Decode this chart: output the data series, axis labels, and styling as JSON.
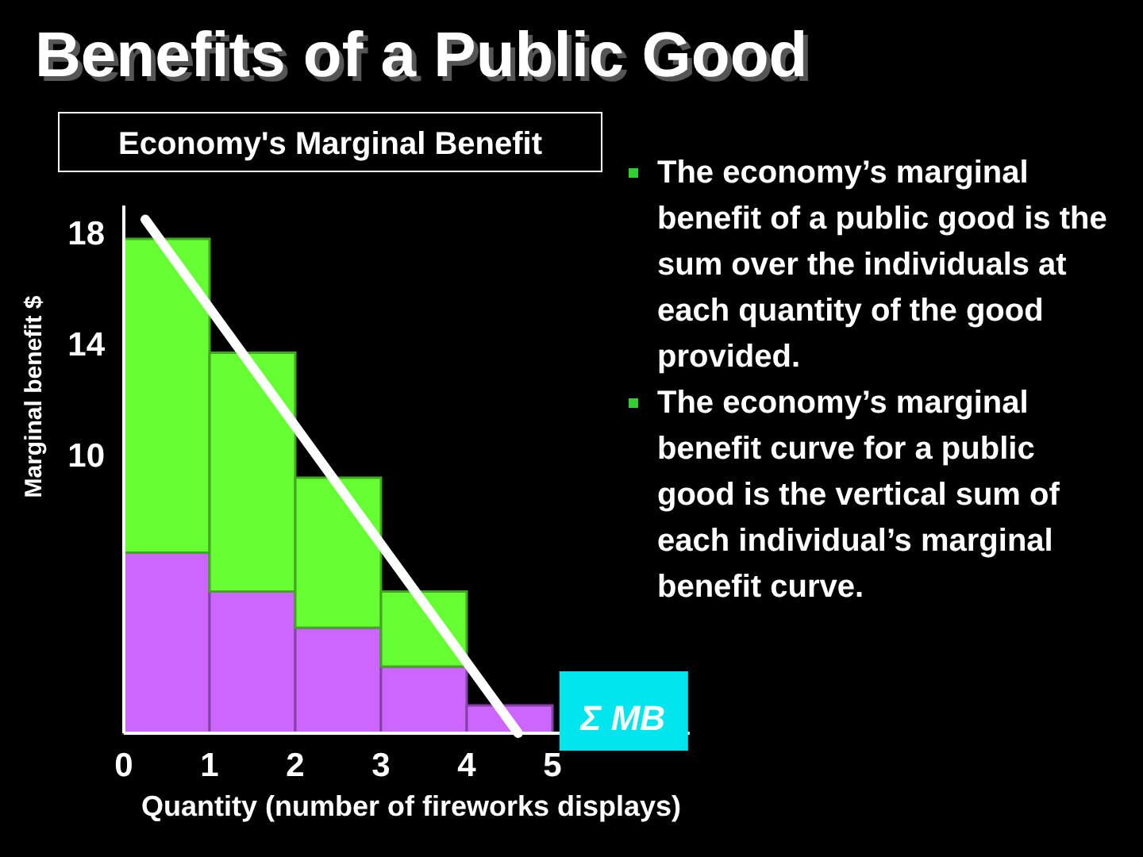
{
  "chart_data": {
    "type": "bar",
    "title": "Benefits of a Public Good",
    "subtitle": "Economy's Marginal Benefit",
    "xlabel": "Quantity (number of fireworks displays)",
    "ylabel": "Marginal benefit $",
    "x": [
      0.5,
      1.5,
      2.5,
      3.5,
      4.5
    ],
    "stacked": true,
    "series": [
      {
        "color": "#cc66ff",
        "values": [
          6.5,
          5.1,
          3.8,
          2.4,
          1.0
        ]
      },
      {
        "color": "#66ff33",
        "values": [
          11.3,
          8.6,
          5.4,
          2.7,
          0
        ]
      },
      {
        "type": "line",
        "name": "Σ MB",
        "color": "#ffffff",
        "x": [
          0.25,
          4.6
        ],
        "values": [
          18.5,
          0
        ]
      }
    ],
    "xlim": [
      0,
      6.6
    ],
    "xticks": [
      0,
      1,
      2,
      3,
      4,
      5
    ],
    "ylim": [
      0,
      19
    ],
    "yticks": [
      10,
      14,
      18
    ],
    "grid": false,
    "annotations": [
      "The economy’s marginal benefit of a public good is the sum over the individuals at each quantity of the good provided.",
      "The economy’s marginal benefit curve for a public good is the vertical sum of each individual’s marginal benefit curve."
    ]
  }
}
